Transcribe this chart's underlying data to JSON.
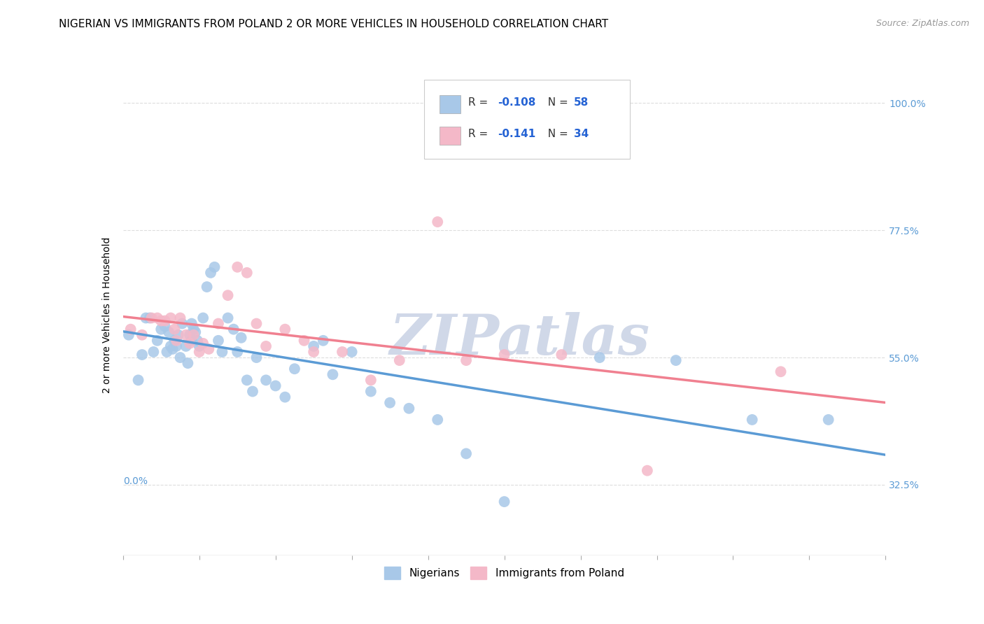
{
  "title": "NIGERIAN VS IMMIGRANTS FROM POLAND 2 OR MORE VEHICLES IN HOUSEHOLD CORRELATION CHART",
  "source": "Source: ZipAtlas.com",
  "ylabel": "2 or more Vehicles in Household",
  "yticks": [
    "100.0%",
    "77.5%",
    "55.0%",
    "32.5%"
  ],
  "ytick_vals": [
    1.0,
    0.775,
    0.55,
    0.325
  ],
  "xmin": 0.0,
  "xmax": 0.4,
  "ymin": 0.2,
  "ymax": 1.05,
  "blue_color": "#A8C8E8",
  "pink_color": "#F4B8C8",
  "blue_line_color": "#5B9BD5",
  "pink_line_color": "#F08090",
  "R_blue": -0.108,
  "N_blue": 58,
  "R_pink": -0.141,
  "N_pink": 34,
  "blue_x": [
    0.003,
    0.008,
    0.01,
    0.012,
    0.014,
    0.016,
    0.018,
    0.02,
    0.022,
    0.023,
    0.024,
    0.025,
    0.026,
    0.027,
    0.028,
    0.029,
    0.03,
    0.031,
    0.033,
    0.034,
    0.035,
    0.036,
    0.036,
    0.037,
    0.038,
    0.039,
    0.04,
    0.042,
    0.044,
    0.046,
    0.048,
    0.05,
    0.052,
    0.055,
    0.058,
    0.06,
    0.062,
    0.065,
    0.068,
    0.07,
    0.075,
    0.08,
    0.085,
    0.09,
    0.1,
    0.105,
    0.11,
    0.12,
    0.13,
    0.14,
    0.15,
    0.165,
    0.18,
    0.2,
    0.25,
    0.29,
    0.33,
    0.37
  ],
  "blue_y": [
    0.59,
    0.51,
    0.555,
    0.62,
    0.62,
    0.56,
    0.58,
    0.6,
    0.605,
    0.56,
    0.595,
    0.57,
    0.565,
    0.58,
    0.57,
    0.59,
    0.55,
    0.61,
    0.57,
    0.54,
    0.59,
    0.61,
    0.58,
    0.6,
    0.595,
    0.58,
    0.57,
    0.62,
    0.675,
    0.7,
    0.71,
    0.58,
    0.56,
    0.62,
    0.6,
    0.56,
    0.585,
    0.51,
    0.49,
    0.55,
    0.51,
    0.5,
    0.48,
    0.53,
    0.57,
    0.58,
    0.52,
    0.56,
    0.49,
    0.47,
    0.46,
    0.44,
    0.38,
    0.295,
    0.55,
    0.545,
    0.44,
    0.44
  ],
  "pink_x": [
    0.004,
    0.01,
    0.015,
    0.018,
    0.02,
    0.022,
    0.025,
    0.027,
    0.028,
    0.03,
    0.033,
    0.035,
    0.037,
    0.04,
    0.042,
    0.045,
    0.05,
    0.055,
    0.06,
    0.065,
    0.07,
    0.075,
    0.085,
    0.095,
    0.1,
    0.115,
    0.13,
    0.145,
    0.165,
    0.18,
    0.2,
    0.23,
    0.275,
    0.345
  ],
  "pink_y": [
    0.6,
    0.59,
    0.62,
    0.62,
    0.615,
    0.615,
    0.62,
    0.6,
    0.58,
    0.62,
    0.59,
    0.575,
    0.59,
    0.56,
    0.575,
    0.565,
    0.61,
    0.66,
    0.71,
    0.7,
    0.61,
    0.57,
    0.6,
    0.58,
    0.56,
    0.56,
    0.51,
    0.545,
    0.79,
    0.545,
    0.555,
    0.555,
    0.35,
    0.525
  ],
  "grid_color": "#DDDDDD",
  "background_color": "#FFFFFF",
  "title_fontsize": 11,
  "axis_label_fontsize": 10,
  "tick_fontsize": 10,
  "source_fontsize": 9,
  "watermark_color": "#D0D8E8"
}
